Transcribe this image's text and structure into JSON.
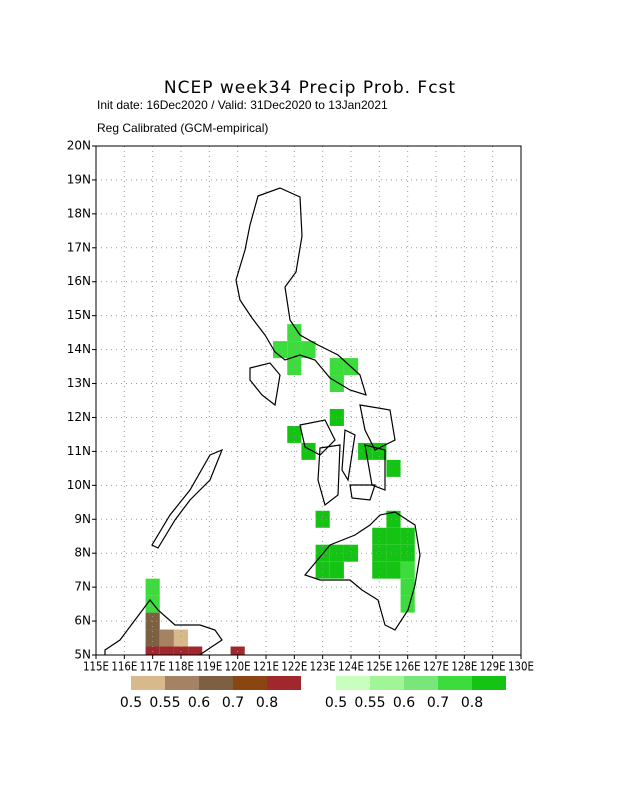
{
  "chart_data": {
    "type": "grid-map",
    "title": "NCEP week34 Precip Prob. Fcst",
    "subtitle": "Init date: 16Dec2020 / Valid: 31Dec2020 to 13Jan2021",
    "note": "Reg Calibrated (GCM-empirical)",
    "xlim": [
      115,
      130
    ],
    "ylim": [
      5,
      20
    ],
    "xticks": [
      {
        "value": 115,
        "label": "115E"
      },
      {
        "value": 116,
        "label": "116E"
      },
      {
        "value": 117,
        "label": "117E"
      },
      {
        "value": 118,
        "label": "118E"
      },
      {
        "value": 119,
        "label": "119E"
      },
      {
        "value": 120,
        "label": "120E"
      },
      {
        "value": 121,
        "label": "121E"
      },
      {
        "value": 122,
        "label": "122E"
      },
      {
        "value": 123,
        "label": "123E"
      },
      {
        "value": 124,
        "label": "124E"
      },
      {
        "value": 125,
        "label": "125E"
      },
      {
        "value": 126,
        "label": "126E"
      },
      {
        "value": 127,
        "label": "127E"
      },
      {
        "value": 128,
        "label": "128E"
      },
      {
        "value": 129,
        "label": "129E"
      },
      {
        "value": 130,
        "label": "130E"
      }
    ],
    "yticks": [
      {
        "value": 5,
        "label": "5N"
      },
      {
        "value": 6,
        "label": "6N"
      },
      {
        "value": 7,
        "label": "7N"
      },
      {
        "value": 8,
        "label": "8N"
      },
      {
        "value": 9,
        "label": "9N"
      },
      {
        "value": 10,
        "label": "10N"
      },
      {
        "value": 11,
        "label": "11N"
      },
      {
        "value": 12,
        "label": "12N"
      },
      {
        "value": 13,
        "label": "13N"
      },
      {
        "value": 14,
        "label": "14N"
      },
      {
        "value": 15,
        "label": "15N"
      },
      {
        "value": 16,
        "label": "16N"
      },
      {
        "value": 17,
        "label": "17N"
      },
      {
        "value": 18,
        "label": "18N"
      },
      {
        "value": 19,
        "label": "19N"
      },
      {
        "value": 20,
        "label": "20N"
      }
    ],
    "grid": true,
    "cell_size": 0.5,
    "colorbars": [
      {
        "levels": [
          0.5,
          0.55,
          0.6,
          0.7,
          0.8
        ],
        "colors": [
          "#d7b98c",
          "#a58264",
          "#7d5f41",
          "#8b4513",
          "#a0282d"
        ],
        "cells": [
          {
            "lon": 117,
            "lat": 6,
            "value": 0.6
          },
          {
            "lon": 117,
            "lat": 5.5,
            "value": 0.6
          },
          {
            "lon": 117,
            "lat": 5,
            "value": 0.8
          },
          {
            "lon": 117.5,
            "lat": 5.5,
            "value": 0.55
          },
          {
            "lon": 118,
            "lat": 5.5,
            "value": 0.5
          },
          {
            "lon": 117.5,
            "lat": 5,
            "value": 0.8
          },
          {
            "lon": 118,
            "lat": 5,
            "value": 0.8
          },
          {
            "lon": 118.5,
            "lat": 5,
            "value": 0.8
          },
          {
            "lon": 120,
            "lat": 5,
            "value": 0.8
          }
        ]
      },
      {
        "levels": [
          0.5,
          0.55,
          0.6,
          0.7,
          0.8
        ],
        "colors": [
          "#c8ffbe",
          "#a0f596",
          "#78e678",
          "#3cdc3c",
          "#14c314"
        ],
        "cells": [
          {
            "lon": 122,
            "lat": 14.5,
            "value": 0.7
          },
          {
            "lon": 122,
            "lat": 14,
            "value": 0.7
          },
          {
            "lon": 121.5,
            "lat": 14,
            "value": 0.7
          },
          {
            "lon": 122.5,
            "lat": 14,
            "value": 0.7
          },
          {
            "lon": 122,
            "lat": 13.5,
            "value": 0.7
          },
          {
            "lon": 123.5,
            "lat": 13.5,
            "value": 0.7
          },
          {
            "lon": 124,
            "lat": 13.5,
            "value": 0.7
          },
          {
            "lon": 123.5,
            "lat": 13,
            "value": 0.7
          },
          {
            "lon": 123.5,
            "lat": 12,
            "value": 0.8
          },
          {
            "lon": 122,
            "lat": 11.5,
            "value": 0.8
          },
          {
            "lon": 122.5,
            "lat": 11,
            "value": 0.8
          },
          {
            "lon": 124.5,
            "lat": 11,
            "value": 0.8
          },
          {
            "lon": 125,
            "lat": 11,
            "value": 0.8
          },
          {
            "lon": 125.5,
            "lat": 10.5,
            "value": 0.8
          },
          {
            "lon": 123,
            "lat": 9,
            "value": 0.8
          },
          {
            "lon": 125.5,
            "lat": 9,
            "value": 0.8
          },
          {
            "lon": 123,
            "lat": 8,
            "value": 0.8
          },
          {
            "lon": 123.5,
            "lat": 8,
            "value": 0.8
          },
          {
            "lon": 124,
            "lat": 8,
            "value": 0.8
          },
          {
            "lon": 123,
            "lat": 7.5,
            "value": 0.8
          },
          {
            "lon": 123.5,
            "lat": 7.5,
            "value": 0.8
          },
          {
            "lon": 125,
            "lat": 8.5,
            "value": 0.8
          },
          {
            "lon": 125.5,
            "lat": 8.5,
            "value": 0.8
          },
          {
            "lon": 126,
            "lat": 8.5,
            "value": 0.8
          },
          {
            "lon": 125,
            "lat": 8,
            "value": 0.8
          },
          {
            "lon": 125.5,
            "lat": 8,
            "value": 0.8
          },
          {
            "lon": 126,
            "lat": 8,
            "value": 0.8
          },
          {
            "lon": 125,
            "lat": 7.5,
            "value": 0.8
          },
          {
            "lon": 125.5,
            "lat": 7.5,
            "value": 0.8
          },
          {
            "lon": 126,
            "lat": 7.5,
            "value": 0.7
          },
          {
            "lon": 126,
            "lat": 7,
            "value": 0.7
          },
          {
            "lon": 126,
            "lat": 6.5,
            "value": 0.7
          },
          {
            "lon": 117,
            "lat": 7,
            "value": 0.7
          },
          {
            "lon": 117,
            "lat": 6.5,
            "value": 0.7
          }
        ]
      }
    ]
  }
}
